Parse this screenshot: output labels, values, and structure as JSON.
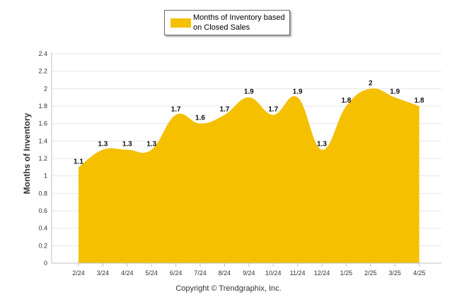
{
  "legend": {
    "label": "Months of Inventory based\non Closed Sales"
  },
  "footer": {
    "copyright": "Copyright © Trendgraphix, Inc."
  },
  "chart_data": {
    "type": "area",
    "title": "",
    "xlabel": "",
    "ylabel": "Months of Inventory",
    "ylim": [
      0,
      2.4
    ],
    "yticks": [
      "0",
      "0.2",
      "0.4",
      "0.6",
      "0.8",
      "1",
      "1.2",
      "1.4",
      "1.6",
      "1.8",
      "2",
      "2.2",
      "2.4"
    ],
    "grid": true,
    "legend_position": "top-center",
    "categories": [
      "2/24",
      "3/24",
      "4/24",
      "5/24",
      "6/24",
      "7/24",
      "8/24",
      "9/24",
      "10/24",
      "11/24",
      "12/24",
      "1/25",
      "2/25",
      "3/25",
      "4/25"
    ],
    "series": [
      {
        "name": "Months of Inventory based on Closed Sales",
        "color": "#F5C000",
        "values": [
          1.1,
          1.3,
          1.3,
          1.3,
          1.7,
          1.6,
          1.7,
          1.9,
          1.7,
          1.9,
          1.3,
          1.8,
          2,
          1.9,
          1.8
        ],
        "labels": [
          "1.1",
          "1.3",
          "1.3",
          "1.3",
          "1.7",
          "1.6",
          "1.7",
          "1.9",
          "1.7",
          "1.9",
          "1.3",
          "1.8",
          "2",
          "1.9",
          "1.8"
        ]
      }
    ]
  }
}
